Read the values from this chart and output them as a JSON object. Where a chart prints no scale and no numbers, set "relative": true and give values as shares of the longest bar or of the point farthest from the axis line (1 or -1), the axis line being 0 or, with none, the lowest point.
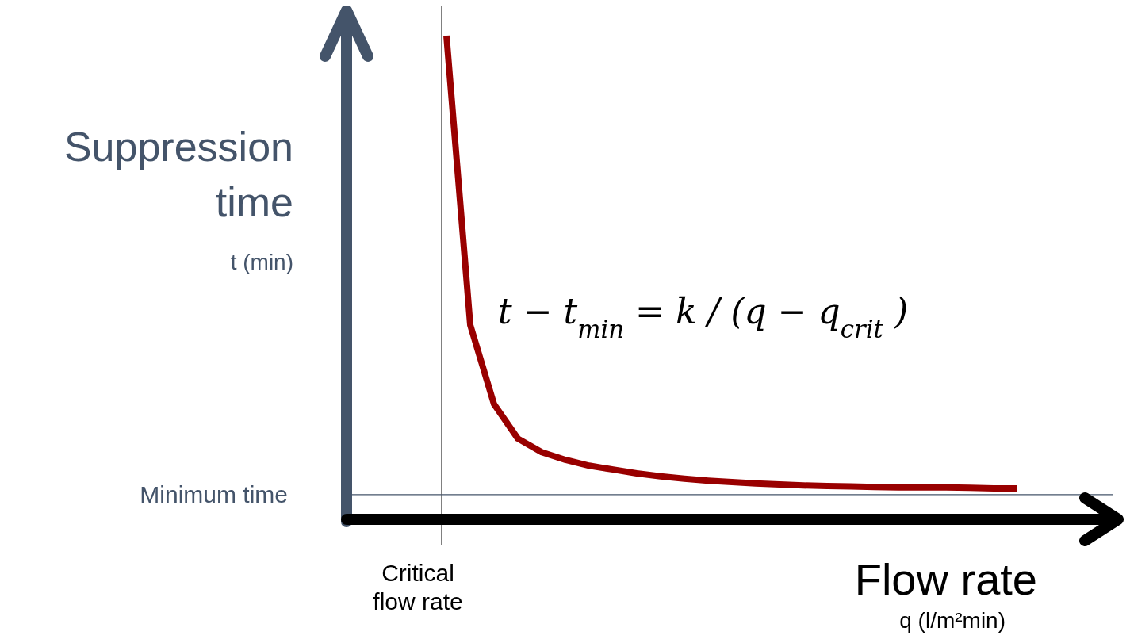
{
  "chart_data": {
    "type": "line",
    "relative": true,
    "xlabel": "Flow rate",
    "ylabel": "Suppression time",
    "categories": [
      null,
      null,
      null,
      null,
      null,
      null,
      null,
      null,
      null,
      null,
      null,
      null,
      null,
      null,
      null,
      null,
      null,
      null,
      null,
      null,
      null,
      null,
      null,
      null,
      null,
      null,
      null,
      null,
      null,
      null,
      null,
      null,
      null
    ],
    "series": [
      {
        "color": "#990000",
        "values": [
          null,
          null,
          null,
          null,
          1.0,
          0.402,
          0.238,
          0.167,
          0.139,
          0.123,
          0.111,
          0.103,
          0.095,
          0.089,
          0.084,
          0.08,
          0.077,
          0.074,
          0.072,
          0.07,
          0.069,
          0.068,
          0.067,
          0.066,
          0.066,
          0.066,
          0.065,
          0.064,
          0.064,
          null,
          null,
          null,
          null
        ]
      },
      {
        "color": "#44546a",
        "values": [
          0.051,
          0.051,
          0.051,
          0.051,
          0.051,
          0.051,
          0.051,
          0.051,
          0.051,
          0.051,
          0.051,
          0.051,
          0.051,
          0.051,
          0.051,
          0.051,
          0.051,
          0.051,
          0.051,
          0.051,
          0.051,
          0.051,
          0.051,
          0.051,
          0.051,
          0.051,
          0.051,
          0.051,
          0.051,
          0.051,
          0.051,
          0.051,
          0.051
        ]
      }
    ],
    "annotations": [
      "t − t$_{min}$ = k / (q − q$_{crit}$)",
      "t (min)",
      "q (l/m²min)",
      "Critical flow rate",
      "Minimum time"
    ],
    "marker": "none",
    "line_style": "solid"
  }
}
